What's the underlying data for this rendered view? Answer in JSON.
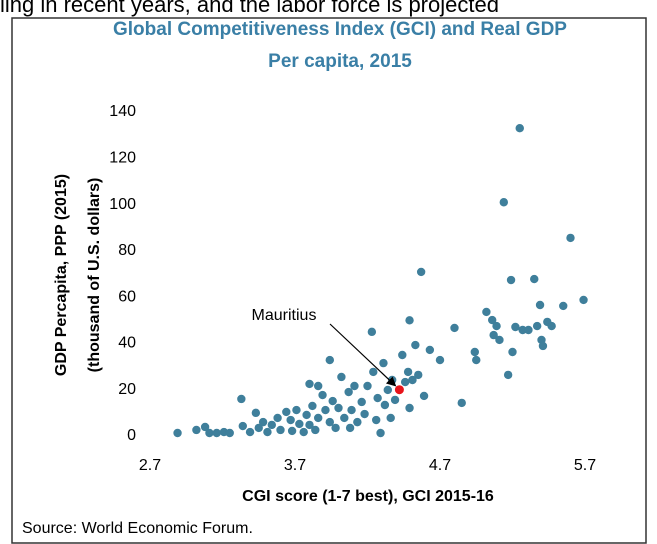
{
  "context": "ling in recent years, and the labor force is projected",
  "chart_data": {
    "type": "scatter",
    "title": [
      "Global Competitiveness Index (GCI) and Real GDP",
      "Per capita, 2015"
    ],
    "x_label": "CGI score (1-7 best), GCI 2015-16",
    "y_label": [
      "GDP Percapita, PPP (2015)",
      "(thousand of U.S. dollars)"
    ],
    "source": "Source: World Economic Forum.",
    "xlim": [
      2.7,
      5.9
    ],
    "xticks": [
      2.7,
      3.7,
      4.7,
      5.7
    ],
    "ylim": [
      0,
      140
    ],
    "yticks": [
      0,
      20,
      40,
      60,
      80,
      100,
      120,
      140
    ],
    "grid": false,
    "series": [
      {
        "color": "#3f7f9b",
        "x": [
          2.89,
          3.02,
          3.08,
          3.11,
          3.16,
          3.21,
          3.25,
          3.34,
          3.33,
          3.39,
          3.43,
          3.45,
          3.48,
          3.51,
          3.54,
          3.58,
          3.6,
          3.64,
          3.67,
          3.68,
          3.71,
          3.73,
          3.76,
          3.78,
          3.8,
          3.82,
          3.84,
          3.86,
          3.8,
          3.86,
          3.89,
          3.91,
          3.94,
          3.96,
          3.94,
          3.98,
          4.0,
          4.02,
          4.04,
          4.07,
          4.08,
          4.09,
          4.11,
          4.13,
          4.16,
          4.18,
          4.2,
          4.23,
          4.24,
          4.26,
          4.27,
          4.29,
          4.31,
          4.32,
          4.34,
          4.36,
          4.37,
          4.39,
          4.44,
          4.46,
          4.48,
          4.49,
          4.49,
          4.51,
          4.53,
          4.55,
          4.57,
          4.59,
          4.63,
          4.7,
          4.8,
          4.85,
          4.94,
          4.95,
          5.02,
          5.06,
          5.07,
          5.09,
          5.11,
          5.14,
          5.17,
          5.19,
          5.2,
          5.22,
          5.25,
          5.27,
          5.31,
          5.35,
          5.37,
          5.39,
          5.4,
          5.41,
          5.44,
          5.47,
          5.55,
          5.6,
          5.69
        ],
        "values": [
          1.3,
          2.6,
          3.9,
          1.3,
          1.3,
          1.7,
          1.3,
          4.3,
          16,
          1.7,
          10,
          3.5,
          6,
          1.7,
          4.8,
          7.8,
          2.6,
          10.4,
          6.9,
          2.2,
          11.2,
          5.2,
          1.7,
          9.1,
          4.8,
          13,
          2.6,
          7.8,
          22.5,
          21.6,
          17.7,
          11.2,
          6,
          15.1,
          32.8,
          3.5,
          12.1,
          25.5,
          7.8,
          19,
          3.5,
          11.2,
          21.6,
          6,
          14.7,
          9.5,
          21.6,
          45,
          27.7,
          6.9,
          16.4,
          1.3,
          31.5,
          13.4,
          19.9,
          7.8,
          24.2,
          15.6,
          35,
          23.3,
          27.7,
          12.1,
          50,
          24.2,
          39.3,
          26.4,
          70.9,
          17.3,
          37.2,
          32.8,
          46.7,
          14.3,
          36.3,
          32.8,
          53.6,
          50.1,
          43.6,
          47.5,
          41.5,
          101,
          26.4,
          67.4,
          36.3,
          47.1,
          133,
          45.8,
          45.8,
          67.8,
          47.5,
          56.6,
          41.5,
          38.9,
          49.3,
          47.5,
          56.2,
          85.6,
          58.8
        ]
      }
    ],
    "annotation": {
      "text": "Mauritius",
      "x": 4.42,
      "y": 20,
      "color": "#e8141b"
    }
  }
}
